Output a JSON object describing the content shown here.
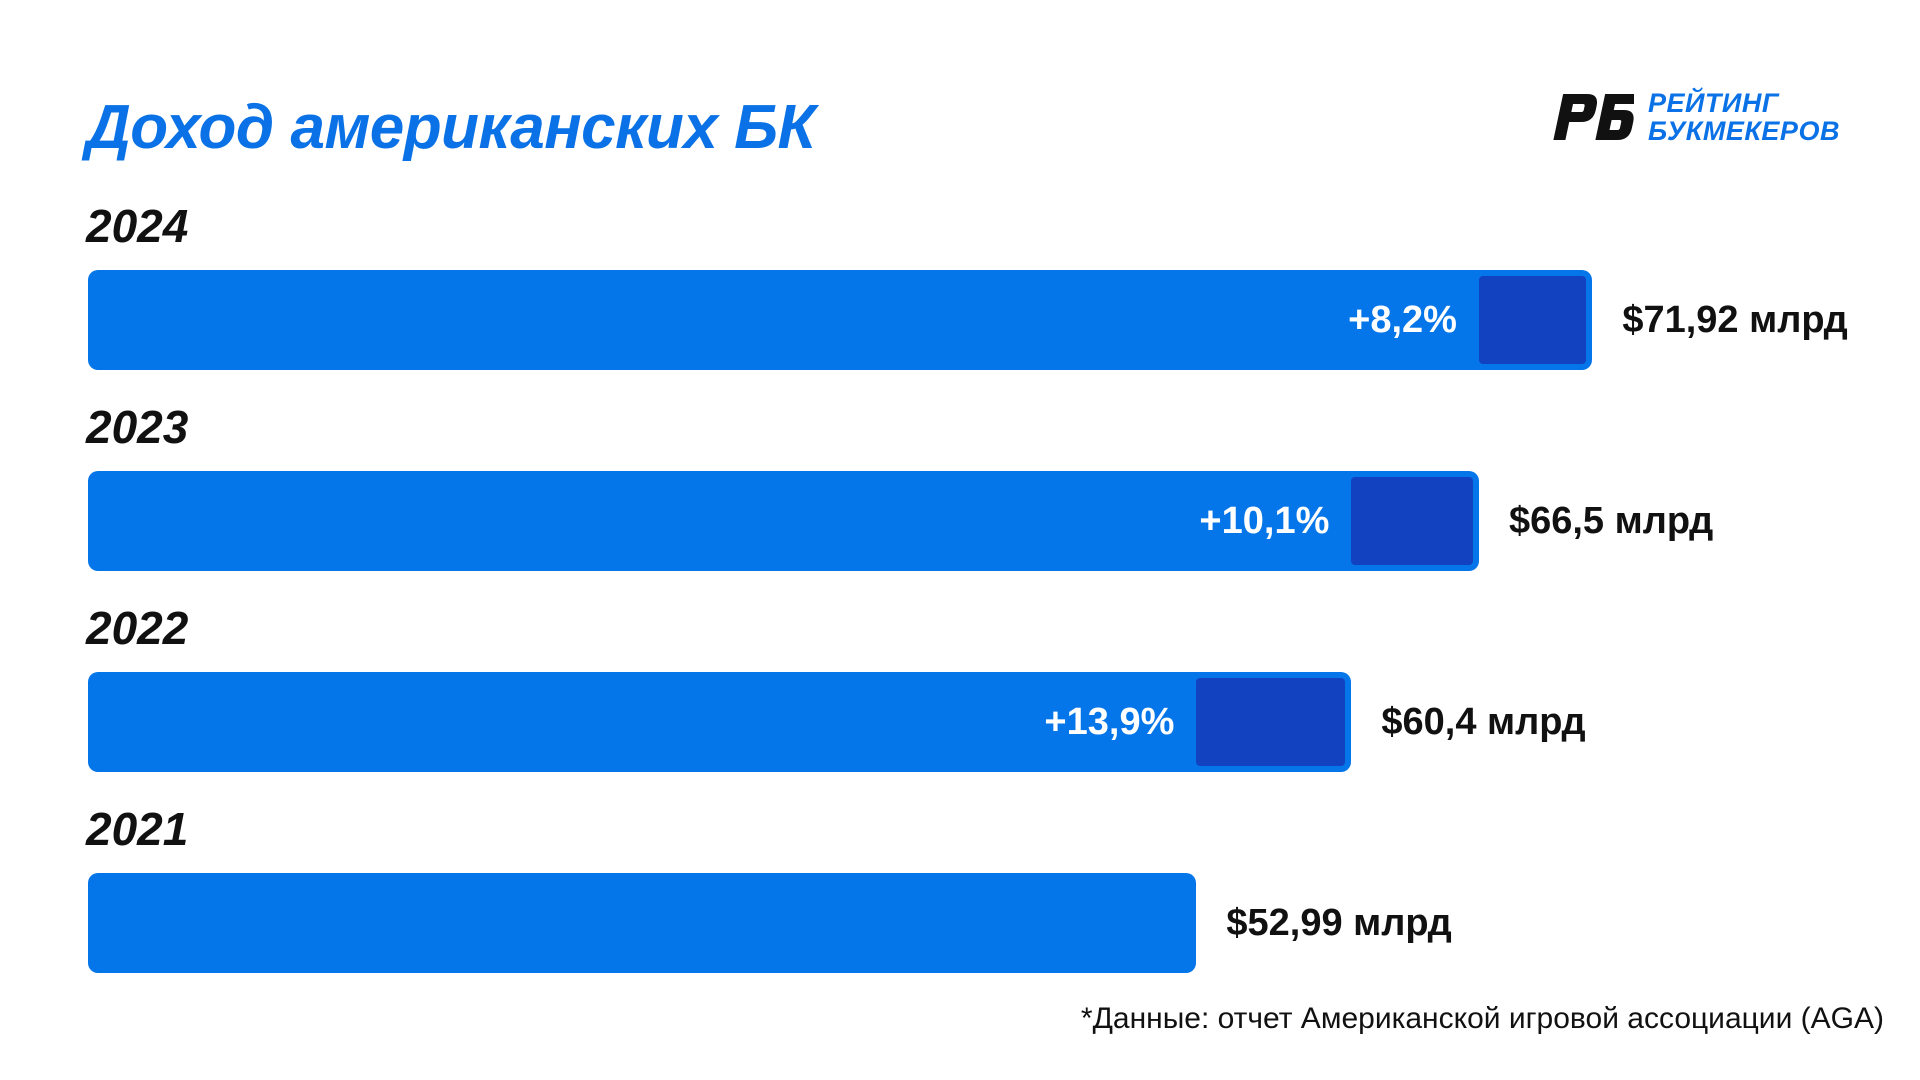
{
  "header": {
    "title": "Доход американских БК"
  },
  "logo": {
    "mark": "РБ",
    "line1": "РЕЙТИНГ",
    "line2": "БУКМЕКЕРОВ",
    "color": "#0a72e6"
  },
  "colors": {
    "bar": "#0576ea",
    "growth_segment": "#1342c0",
    "title": "#0a72e6"
  },
  "chart_data": {
    "type": "bar",
    "orientation": "horizontal",
    "title": "Доход американских БК",
    "unit": "млрд $",
    "categories": [
      "2024",
      "2023",
      "2022",
      "2021"
    ],
    "values": [
      71.92,
      66.5,
      60.4,
      52.99
    ],
    "value_labels": [
      "$71,92 млрд",
      "$66,5 млрд",
      "$60,4 млрд",
      "$52,99 млрд"
    ],
    "growth_labels": [
      "+8,2%",
      "+10,1%",
      "+13,9%",
      ""
    ],
    "previous_values": [
      66.5,
      60.4,
      52.99,
      null
    ],
    "xlim": [
      0,
      72
    ],
    "grid": false,
    "legend": "none"
  },
  "footnote": "*Данные: отчет Американской игровой ассоциации (AGA)"
}
